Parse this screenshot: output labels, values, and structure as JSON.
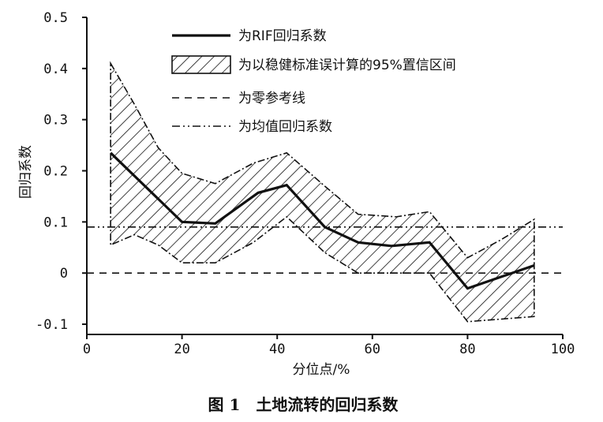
{
  "caption": "图 1　土地流转的回归系数",
  "chart_data": {
    "type": "line",
    "xlabel": "分位点/%",
    "ylabel": "回归系数",
    "xlim": [
      0,
      100
    ],
    "ylim": [
      -0.12,
      0.5
    ],
    "xticks": [
      0,
      20,
      40,
      60,
      80,
      100
    ],
    "yticks": [
      -0.1,
      0,
      0.1,
      0.2,
      0.3,
      0.4,
      0.5
    ],
    "ytick_labels": [
      "-0.1",
      "0",
      "0.1",
      "0.2",
      "0.3",
      "0.4",
      "0.5"
    ],
    "grid": false,
    "legend_position": "top",
    "series": [
      {
        "name": "为RIF回归系数",
        "style": "solid",
        "x": [
          5,
          20,
          27,
          36,
          42,
          50,
          57,
          64,
          72,
          80,
          94
        ],
        "y": [
          0.235,
          0.1,
          0.097,
          0.157,
          0.172,
          0.09,
          0.06,
          0.053,
          0.06,
          -0.03,
          0.015
        ]
      },
      {
        "name": "为以稳健标准误计算的95%置信区间",
        "style": "hatched-band",
        "x": [
          5,
          10,
          15,
          20,
          27,
          35,
          42,
          50,
          57,
          65,
          72,
          80,
          87,
          94
        ],
        "lower": [
          0.055,
          0.075,
          0.055,
          0.02,
          0.02,
          0.06,
          0.11,
          0.04,
          0.0,
          0.0,
          0.0,
          -0.095,
          -0.09,
          -0.085
        ],
        "upper": [
          0.41,
          0.33,
          0.245,
          0.195,
          0.175,
          0.215,
          0.235,
          0.17,
          0.115,
          0.11,
          0.12,
          0.03,
          0.065,
          0.105
        ]
      },
      {
        "name": "为零参考线",
        "style": "dashed",
        "value": 0
      },
      {
        "name": "为均值回归系数",
        "style": "dashdot",
        "value": 0.09
      }
    ]
  }
}
